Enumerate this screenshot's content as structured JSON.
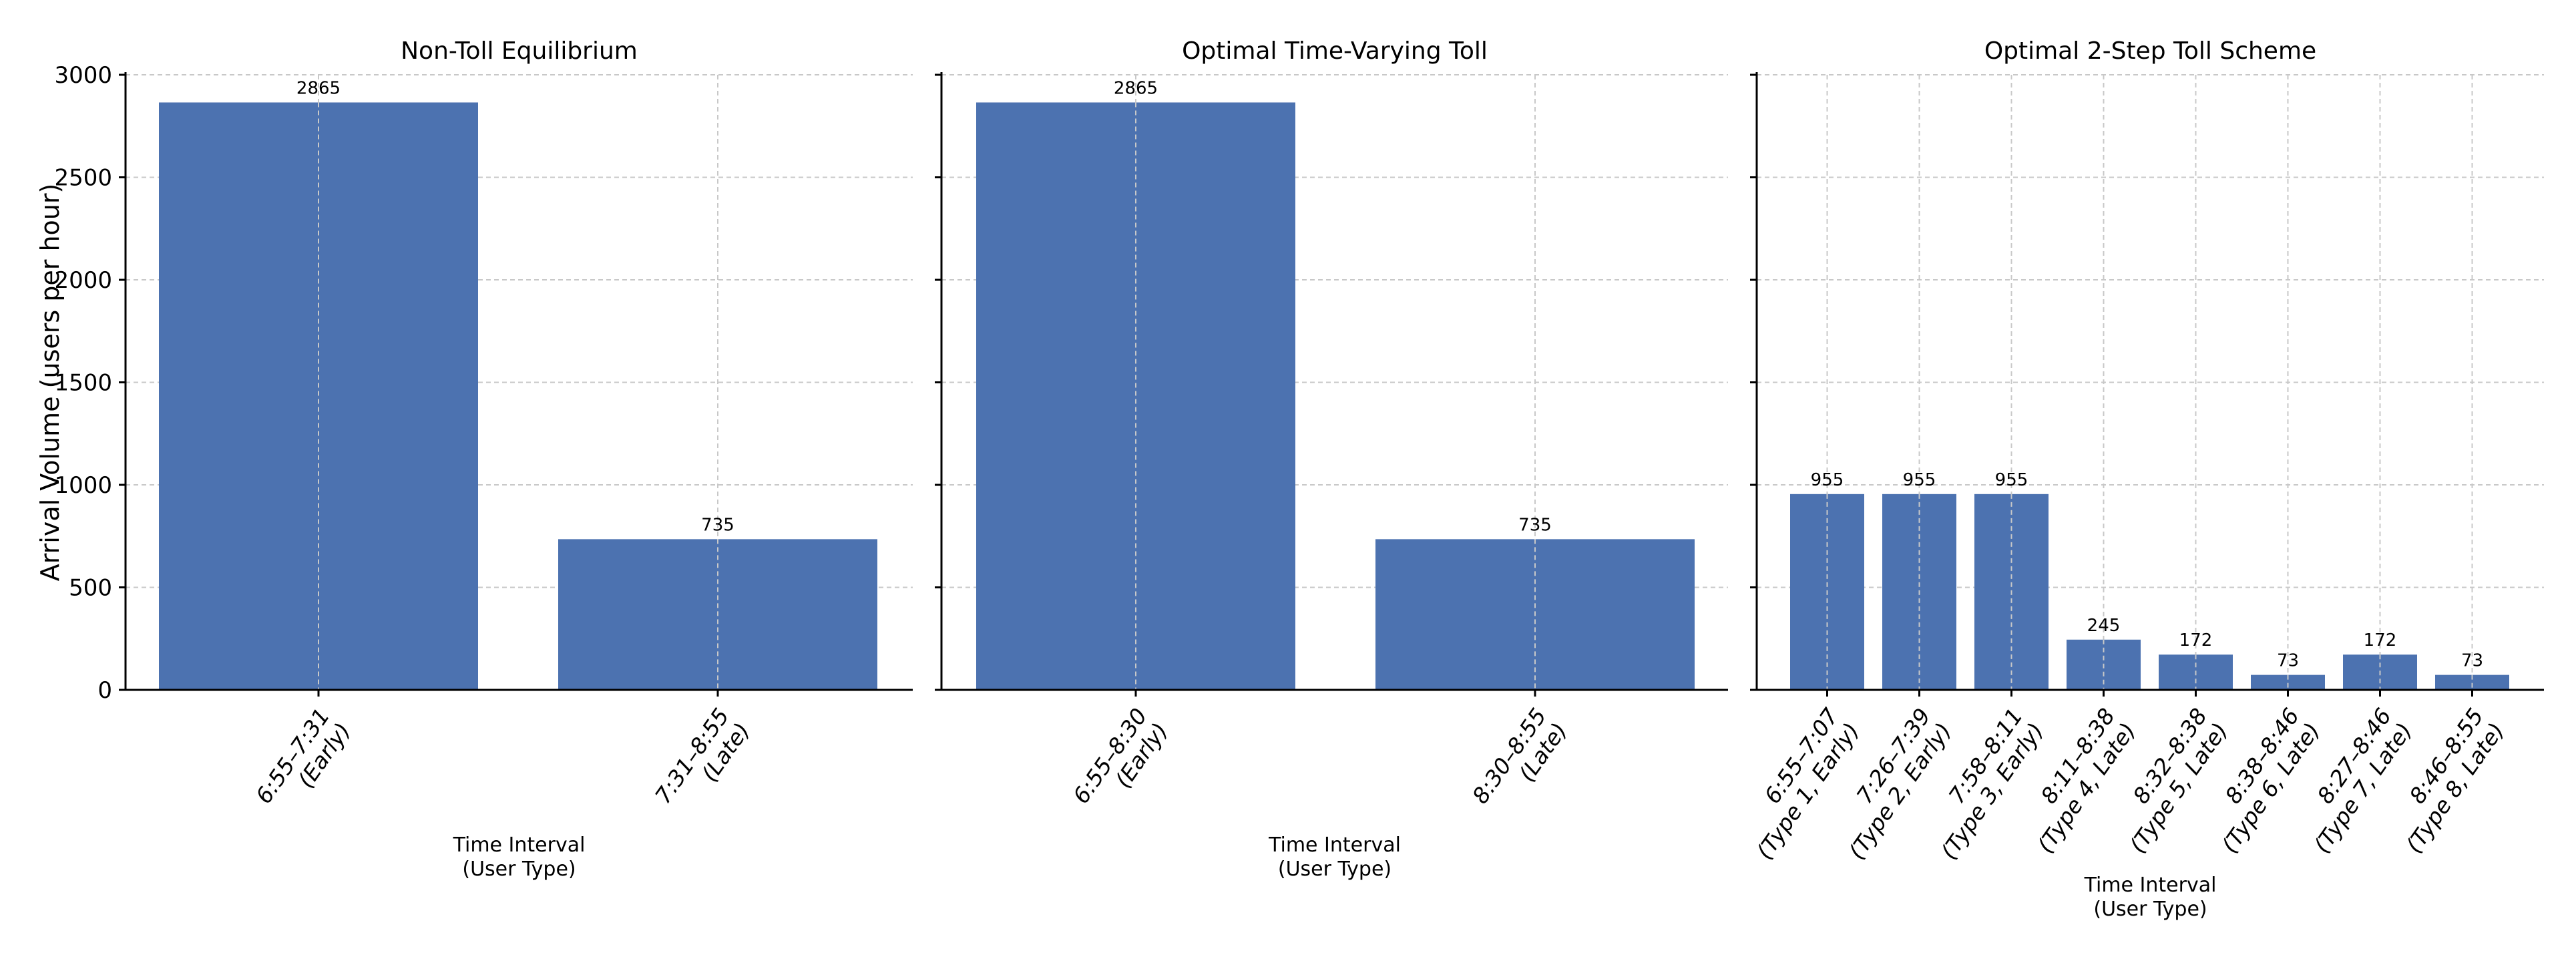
{
  "colors": {
    "bar": "#4c72b0"
  },
  "chart_data": [
    {
      "type": "bar",
      "title": "Non-Toll Equilibrium",
      "xlabel": "Time Interval\n(User Type)",
      "ylabel": "Arrival Volume (users per hour)",
      "ylim": [
        0,
        3000
      ],
      "yticks": [
        "0",
        "500",
        "1000",
        "1500",
        "2000",
        "2500",
        "3000"
      ],
      "grid": true,
      "categories": [
        "6:55–7:31\n(Early)",
        "7:31–8:55\n(Late)"
      ],
      "values": [
        2865,
        735
      ],
      "data_labels": [
        "2865",
        "735"
      ]
    },
    {
      "type": "bar",
      "title": "Optimal Time-Varying Toll",
      "xlabel": "Time Interval\n(User Type)",
      "ylim": [
        0,
        3000
      ],
      "grid": true,
      "categories": [
        "6:55–8:30\n(Early)",
        "8:30–8:55\n(Late)"
      ],
      "values": [
        2865,
        735
      ],
      "data_labels": [
        "2865",
        "735"
      ]
    },
    {
      "type": "bar",
      "title": "Optimal 2-Step Toll Scheme",
      "xlabel": "Time Interval\n(User Type)",
      "ylim": [
        0,
        3000
      ],
      "grid": true,
      "categories": [
        "6:55–7:07\n(Type 1, Early)",
        "7:26–7:39\n(Type 2, Early)",
        "7:58–8:11\n(Type 3, Early)",
        "8:11–8:38\n(Type 4, Late)",
        "8:32–8:38\n(Type 5, Late)",
        "8:38–8:46\n(Type 6, Late)",
        "8:27–8:46\n(Type 7, Late)",
        "8:46–8:55\n(Type 8, Late)"
      ],
      "values": [
        955,
        955,
        955,
        245,
        172,
        73,
        172,
        73
      ],
      "data_labels": [
        "955",
        "955",
        "955",
        "245",
        "172",
        "73",
        "172",
        "73"
      ]
    }
  ]
}
